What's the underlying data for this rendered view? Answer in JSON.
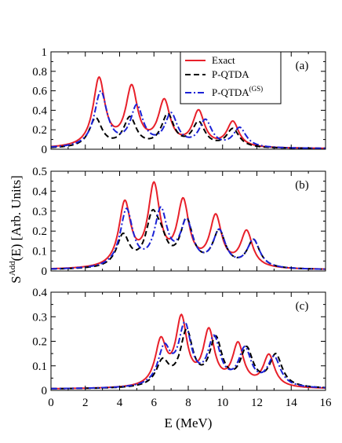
{
  "chart_data": {
    "type": "line",
    "shared_xlabel": "E (MeV)",
    "shared_ylabel_main": "S",
    "shared_ylabel_sup": "Add",
    "shared_ylabel_rest": "(E) [Arb. Units]",
    "xlim": [
      0,
      16
    ],
    "x_ticks": [
      0,
      2,
      4,
      6,
      8,
      10,
      12,
      14,
      16
    ],
    "x_tick_labels": [
      "0",
      "2",
      "4",
      "6",
      "8",
      "10",
      "12",
      "14",
      "16"
    ],
    "legend": {
      "placement": "top-right of panel (a)",
      "entries": [
        {
          "label": "Exact",
          "color": "#e8202a",
          "dash": "solid"
        },
        {
          "label": "P-QTDA",
          "color": "#000000",
          "dash": "dashed"
        },
        {
          "label": "P-QTDA",
          "sup": "(GS)",
          "color": "#1b22d6",
          "dash": "dashdot"
        }
      ]
    },
    "panels": [
      {
        "tag": "(a)",
        "ylim": [
          0,
          1
        ],
        "y_ticks": [
          0,
          0.2,
          0.4,
          0.6,
          0.8,
          1
        ],
        "y_tick_labels": [
          "0",
          "0.2",
          "0.4",
          "0.6",
          "0.8",
          "1"
        ],
        "series": [
          {
            "name": "Exact",
            "color": "#e8202a",
            "dash": "solid",
            "width": 0.42,
            "peaks": [
              [
                2.8,
                0.7
              ],
              [
                4.7,
                0.6
              ],
              [
                6.6,
                0.46
              ],
              [
                8.6,
                0.36
              ],
              [
                10.6,
                0.26
              ]
            ]
          },
          {
            "name": "P-QTDA",
            "color": "#000000",
            "dash": "dashed",
            "width": 0.45,
            "peaks": [
              [
                2.6,
                0.3
              ],
              [
                4.6,
                0.3
              ],
              [
                6.8,
                0.33
              ],
              [
                8.6,
                0.25
              ],
              [
                10.6,
                0.19
              ]
            ]
          },
          {
            "name": "P-QTDA(GS)",
            "color": "#1b22d6",
            "dash": "dashdot",
            "width": 0.45,
            "peaks": [
              [
                2.9,
                0.57
              ],
              [
                5.0,
                0.41
              ],
              [
                7.0,
                0.33
              ],
              [
                9.0,
                0.27
              ],
              [
                11.0,
                0.2
              ]
            ]
          }
        ]
      },
      {
        "tag": "(b)",
        "ylim": [
          0,
          0.5
        ],
        "y_ticks": [
          0,
          0.1,
          0.2,
          0.3,
          0.4,
          0.5
        ],
        "y_tick_labels": [
          "0",
          "0.1",
          "0.2",
          "0.3",
          "0.4",
          "0.5"
        ],
        "series": [
          {
            "name": "Exact",
            "color": "#e8202a",
            "dash": "solid",
            "width": 0.42,
            "peaks": [
              [
                4.3,
                0.32
              ],
              [
                6.0,
                0.4
              ],
              [
                7.7,
                0.32
              ],
              [
                9.6,
                0.25
              ],
              [
                11.4,
                0.18
              ]
            ]
          },
          {
            "name": "P-QTDA",
            "color": "#000000",
            "dash": "dashed",
            "width": 0.45,
            "peaks": [
              [
                4.2,
                0.16
              ],
              [
                5.9,
                0.23
              ],
              [
                6.4,
                0.1
              ],
              [
                7.9,
                0.23
              ],
              [
                9.8,
                0.18
              ],
              [
                11.8,
                0.14
              ]
            ]
          },
          {
            "name": "P-QTDA(GS)",
            "color": "#1b22d6",
            "dash": "dashdot",
            "width": 0.45,
            "peaks": [
              [
                4.4,
                0.29
              ],
              [
                6.4,
                0.28
              ],
              [
                7.9,
                0.22
              ],
              [
                9.8,
                0.18
              ],
              [
                11.8,
                0.14
              ]
            ]
          }
        ]
      },
      {
        "tag": "(c)",
        "ylim": [
          0,
          0.4
        ],
        "y_ticks": [
          0,
          0.1,
          0.2,
          0.3,
          0.4
        ],
        "y_tick_labels": [
          "0",
          "0.1",
          "0.2",
          "0.3",
          "0.4"
        ],
        "series": [
          {
            "name": "Exact",
            "color": "#e8202a",
            "dash": "solid",
            "width": 0.4,
            "peaks": [
              [
                6.4,
                0.18
              ],
              [
                7.6,
                0.27
              ],
              [
                9.2,
                0.22
              ],
              [
                10.9,
                0.17
              ],
              [
                12.7,
                0.13
              ]
            ]
          },
          {
            "name": "P-QTDA",
            "color": "#000000",
            "dash": "dashed",
            "width": 0.45,
            "peaks": [
              [
                6.5,
                0.1
              ],
              [
                7.9,
                0.22
              ],
              [
                9.6,
                0.19
              ],
              [
                11.4,
                0.15
              ],
              [
                13.1,
                0.13
              ]
            ]
          },
          {
            "name": "P-QTDA(GS)",
            "color": "#1b22d6",
            "dash": "dashdot",
            "width": 0.45,
            "peaks": [
              [
                6.6,
                0.15
              ],
              [
                7.8,
                0.24
              ],
              [
                9.5,
                0.19
              ],
              [
                11.3,
                0.15
              ],
              [
                13.0,
                0.12
              ]
            ]
          }
        ]
      }
    ]
  }
}
